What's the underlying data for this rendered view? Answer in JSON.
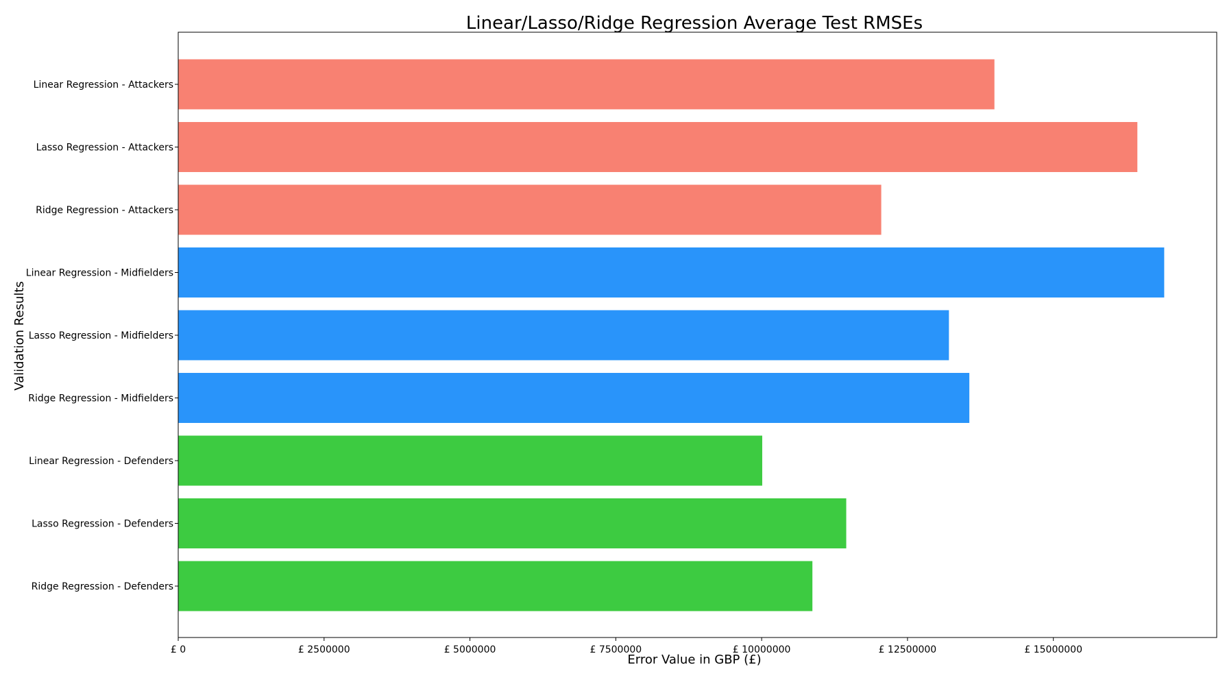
{
  "chart_data": {
    "type": "bar",
    "orientation": "horizontal",
    "title": "Linear/Lasso/Ridge Regression Average Test RMSEs",
    "xlabel": "Error Value in GBP (£)",
    "ylabel": "Validation Results",
    "xlim": [
      0,
      17800000
    ],
    "xticks": [
      {
        "value": 0,
        "label": "£ 0"
      },
      {
        "value": 2500000,
        "label": "£ 2500000"
      },
      {
        "value": 5000000,
        "label": "£ 5000000"
      },
      {
        "value": 7500000,
        "label": "£ 7500000"
      },
      {
        "value": 10000000,
        "label": "£ 10000000"
      },
      {
        "value": 12500000,
        "label": "£ 12500000"
      },
      {
        "value": 15000000,
        "label": "£ 15000000"
      }
    ],
    "grid": false,
    "categories": [
      "Linear Regression - Attackers",
      "Lasso Regression - Attackers",
      "Ridge Regression - Attackers",
      "Linear Regression - Midfielders",
      "Lasso Regression - Midfielders",
      "Ridge Regression - Midfielders",
      "Linear Regression - Defenders",
      "Lasso Regression - Defenders",
      "Ridge Regression - Defenders"
    ],
    "values": [
      13990000,
      16440000,
      12050000,
      16900000,
      13210000,
      13560000,
      10010000,
      11450000,
      10870000
    ],
    "colors": [
      "#f88172",
      "#f88172",
      "#f88172",
      "#2994fa",
      "#2994fa",
      "#2994fa",
      "#3dcb41",
      "#3dcb41",
      "#3dcb41"
    ]
  }
}
